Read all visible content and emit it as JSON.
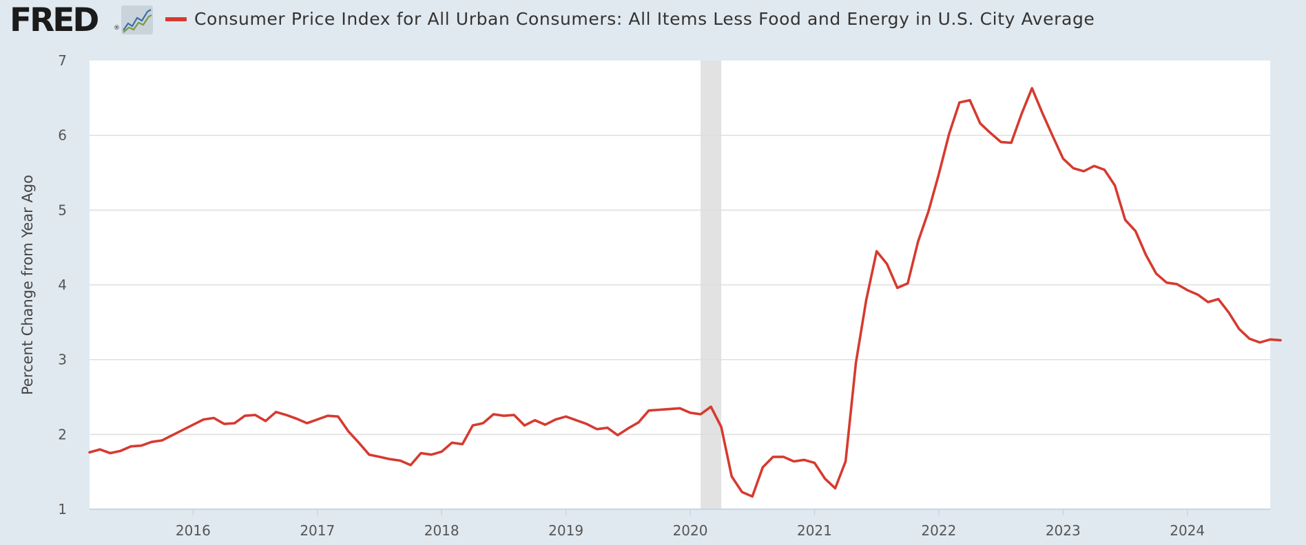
{
  "brand": {
    "name": "FRED",
    "registered": "®",
    "icon": "fred-line-chart-icon"
  },
  "legend": {
    "label": "Consumer Price Index for All Urban Consumers: All Items Less Food and Energy in U.S. City Average",
    "color": "#d63a2f"
  },
  "colors": {
    "series": "#d63a2f",
    "plot_bg": "#ffffff",
    "page_bg": "#e1e9f0",
    "grid": "#dddddd",
    "recession": "#e2e2e2"
  },
  "chart_data": {
    "type": "line",
    "title": "Consumer Price Index for All Urban Consumers: All Items Less Food and Energy in U.S. City Average",
    "xlabel": "",
    "ylabel": "Percent Change from Year Ago",
    "ylim": [
      1,
      7
    ],
    "xlim": [
      2015.1667,
      2024.6667
    ],
    "y_ticks": [
      "1",
      "2",
      "3",
      "4",
      "5",
      "6",
      "7"
    ],
    "x_ticks": [
      "2016",
      "2017",
      "2018",
      "2019",
      "2020",
      "2021",
      "2022",
      "2023",
      "2024"
    ],
    "grid": true,
    "recession_shading": [
      {
        "start": 2020.0833,
        "end": 2020.25
      }
    ],
    "start": "2015-03",
    "frequency": "monthly",
    "series": [
      {
        "name": "Consumer Price Index for All Urban Consumers: All Items Less Food and Energy in U.S. City Average",
        "values": [
          1.76,
          1.8,
          1.75,
          1.78,
          1.84,
          1.85,
          1.9,
          1.92,
          1.99,
          2.06,
          2.13,
          2.2,
          2.22,
          2.14,
          2.15,
          2.25,
          2.26,
          2.18,
          2.3,
          2.26,
          2.21,
          2.15,
          2.2,
          2.25,
          2.24,
          2.04,
          1.89,
          1.73,
          1.7,
          1.67,
          1.65,
          1.59,
          1.75,
          1.73,
          1.77,
          1.89,
          1.87,
          2.12,
          2.15,
          2.27,
          2.25,
          2.26,
          2.12,
          2.19,
          2.13,
          2.2,
          2.24,
          2.19,
          2.14,
          2.07,
          2.09,
          1.99,
          2.08,
          2.16,
          2.32,
          2.33,
          2.34,
          2.35,
          2.29,
          2.27,
          2.37,
          2.1,
          1.44,
          1.23,
          1.17,
          1.56,
          1.7,
          1.7,
          1.64,
          1.66,
          1.62,
          1.41,
          1.28,
          1.64,
          2.96,
          3.8,
          4.45,
          4.28,
          3.96,
          4.02,
          4.58,
          4.98,
          5.48,
          6.02,
          6.44,
          6.47,
          6.16,
          6.03,
          5.91,
          5.9,
          6.29,
          6.63,
          6.3,
          5.99,
          5.69,
          5.56,
          5.52,
          5.59,
          5.54,
          5.33,
          4.87,
          4.72,
          4.4,
          4.15,
          4.03,
          4.01,
          3.93,
          3.87,
          3.77,
          3.81,
          3.63,
          3.41,
          3.28,
          3.23,
          3.27,
          3.26
        ]
      }
    ]
  }
}
